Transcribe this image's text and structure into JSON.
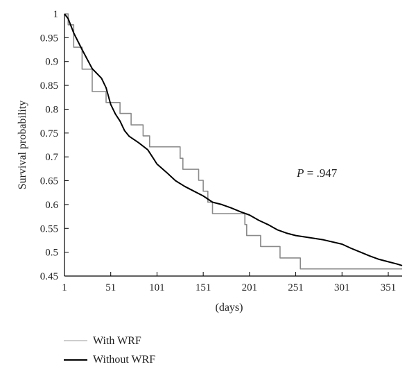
{
  "chart_data": {
    "type": "line",
    "xlabel": "(days)",
    "ylabel": "Survival probability",
    "xlim": [
      1,
      366
    ],
    "ylim": [
      0.45,
      1.0
    ],
    "xticks": [
      1,
      51,
      101,
      151,
      201,
      251,
      301,
      351
    ],
    "yticks": [
      0.45,
      0.5,
      0.55,
      0.6,
      0.65,
      0.7,
      0.75,
      0.8,
      0.85,
      0.9,
      0.95,
      1
    ],
    "ytick_labels": [
      "0.45",
      "0.5",
      "0.55",
      "0.6",
      "0.65",
      "0.7",
      "0.75",
      "0.8",
      "0.85",
      "0.9",
      "0.95",
      "1"
    ],
    "annotation": {
      "italic": "P",
      "rest": " = .947"
    },
    "grid": false,
    "legend_position": "below",
    "series": [
      {
        "name": "With WRF",
        "color": "#8a8a8a",
        "step": true,
        "points": [
          [
            1,
            1.0
          ],
          [
            5,
            0.977
          ],
          [
            11,
            0.93
          ],
          [
            20,
            0.884
          ],
          [
            31,
            0.837
          ],
          [
            46,
            0.814
          ],
          [
            61,
            0.791
          ],
          [
            73,
            0.767
          ],
          [
            86,
            0.744
          ],
          [
            93,
            0.721
          ],
          [
            126,
            0.697
          ],
          [
            129,
            0.674
          ],
          [
            146,
            0.651
          ],
          [
            151,
            0.628
          ],
          [
            156,
            0.605
          ],
          [
            161,
            0.581
          ],
          [
            196,
            0.558
          ],
          [
            198,
            0.535
          ],
          [
            213,
            0.512
          ],
          [
            234,
            0.488
          ],
          [
            256,
            0.465
          ],
          [
            366,
            0.465
          ]
        ]
      },
      {
        "name": "Without WRF",
        "color": "#000000",
        "step": false,
        "points": [
          [
            1,
            1.0
          ],
          [
            5,
            0.99
          ],
          [
            11,
            0.96
          ],
          [
            20,
            0.925
          ],
          [
            31,
            0.885
          ],
          [
            41,
            0.865
          ],
          [
            46,
            0.845
          ],
          [
            51,
            0.81
          ],
          [
            56,
            0.79
          ],
          [
            61,
            0.775
          ],
          [
            66,
            0.755
          ],
          [
            71,
            0.743
          ],
          [
            81,
            0.73
          ],
          [
            91,
            0.715
          ],
          [
            96,
            0.7
          ],
          [
            101,
            0.685
          ],
          [
            111,
            0.668
          ],
          [
            121,
            0.65
          ],
          [
            131,
            0.638
          ],
          [
            141,
            0.628
          ],
          [
            151,
            0.618
          ],
          [
            161,
            0.605
          ],
          [
            171,
            0.6
          ],
          [
            181,
            0.593
          ],
          [
            191,
            0.585
          ],
          [
            201,
            0.578
          ],
          [
            211,
            0.567
          ],
          [
            221,
            0.558
          ],
          [
            231,
            0.547
          ],
          [
            241,
            0.54
          ],
          [
            251,
            0.535
          ],
          [
            261,
            0.532
          ],
          [
            281,
            0.526
          ],
          [
            301,
            0.517
          ],
          [
            311,
            0.508
          ],
          [
            321,
            0.5
          ],
          [
            331,
            0.492
          ],
          [
            341,
            0.485
          ],
          [
            351,
            0.48
          ],
          [
            361,
            0.475
          ],
          [
            366,
            0.472
          ]
        ]
      }
    ]
  }
}
